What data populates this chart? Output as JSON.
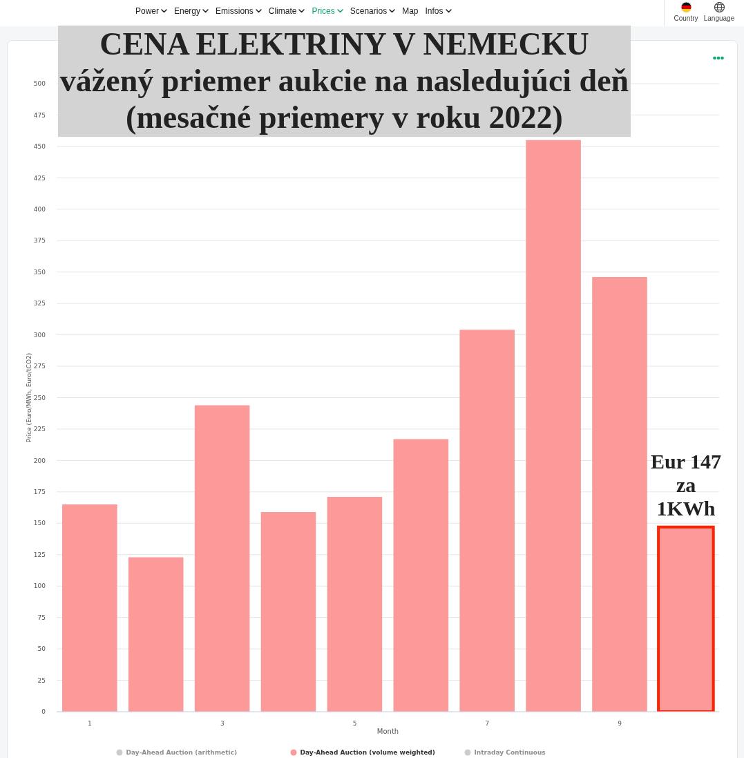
{
  "chart_data": {
    "type": "bar",
    "title": "CENA ELEKTRINY V NEMECKU",
    "subtitle": "vážený priemer aukcie na nasledujúci deň\n(mesačné priemery v roku 2022)",
    "xlabel": "Month",
    "ylabel": "Price (Euro/MWh, Euro/tCO2)",
    "x": [
      1,
      2,
      3,
      4,
      5,
      6,
      7,
      8,
      9,
      10
    ],
    "xlim": [
      0.5,
      10.5
    ],
    "xticks": [
      1,
      3,
      5,
      7,
      9
    ],
    "series": [
      {
        "name": "Day-Ahead Auction (arithmetic)",
        "color": "#cccccc",
        "values": [
          null,
          null,
          null,
          null,
          null,
          null,
          null,
          null,
          null,
          null
        ]
      },
      {
        "name": "Day-Ahead Auction (volume weighted)",
        "color": "#fb9a99",
        "values": [
          165,
          123,
          244,
          159,
          171,
          217,
          304,
          455,
          346,
          147
        ]
      },
      {
        "name": "Intraday Continuous",
        "color": "#cccccc",
        "values": [
          null,
          null,
          null,
          null,
          null,
          null,
          null,
          null,
          null,
          null
        ]
      }
    ],
    "ylim": [
      0,
      500
    ],
    "yticks": [
      0,
      25,
      50,
      75,
      100,
      125,
      150,
      175,
      200,
      225,
      250,
      275,
      300,
      325,
      350,
      375,
      400,
      425,
      450,
      475,
      500
    ],
    "grid": "y",
    "legend": "bottom",
    "annotations": [
      "Power",
      "Energy",
      "Emissions",
      "Climate",
      "Prices",
      "Scenarios",
      "Map",
      "Infos",
      "Country",
      "Language",
      {
        "text": "Eur 147\nza\n1KWh",
        "x": 10,
        "y": 147
      }
    ]
  }
}
